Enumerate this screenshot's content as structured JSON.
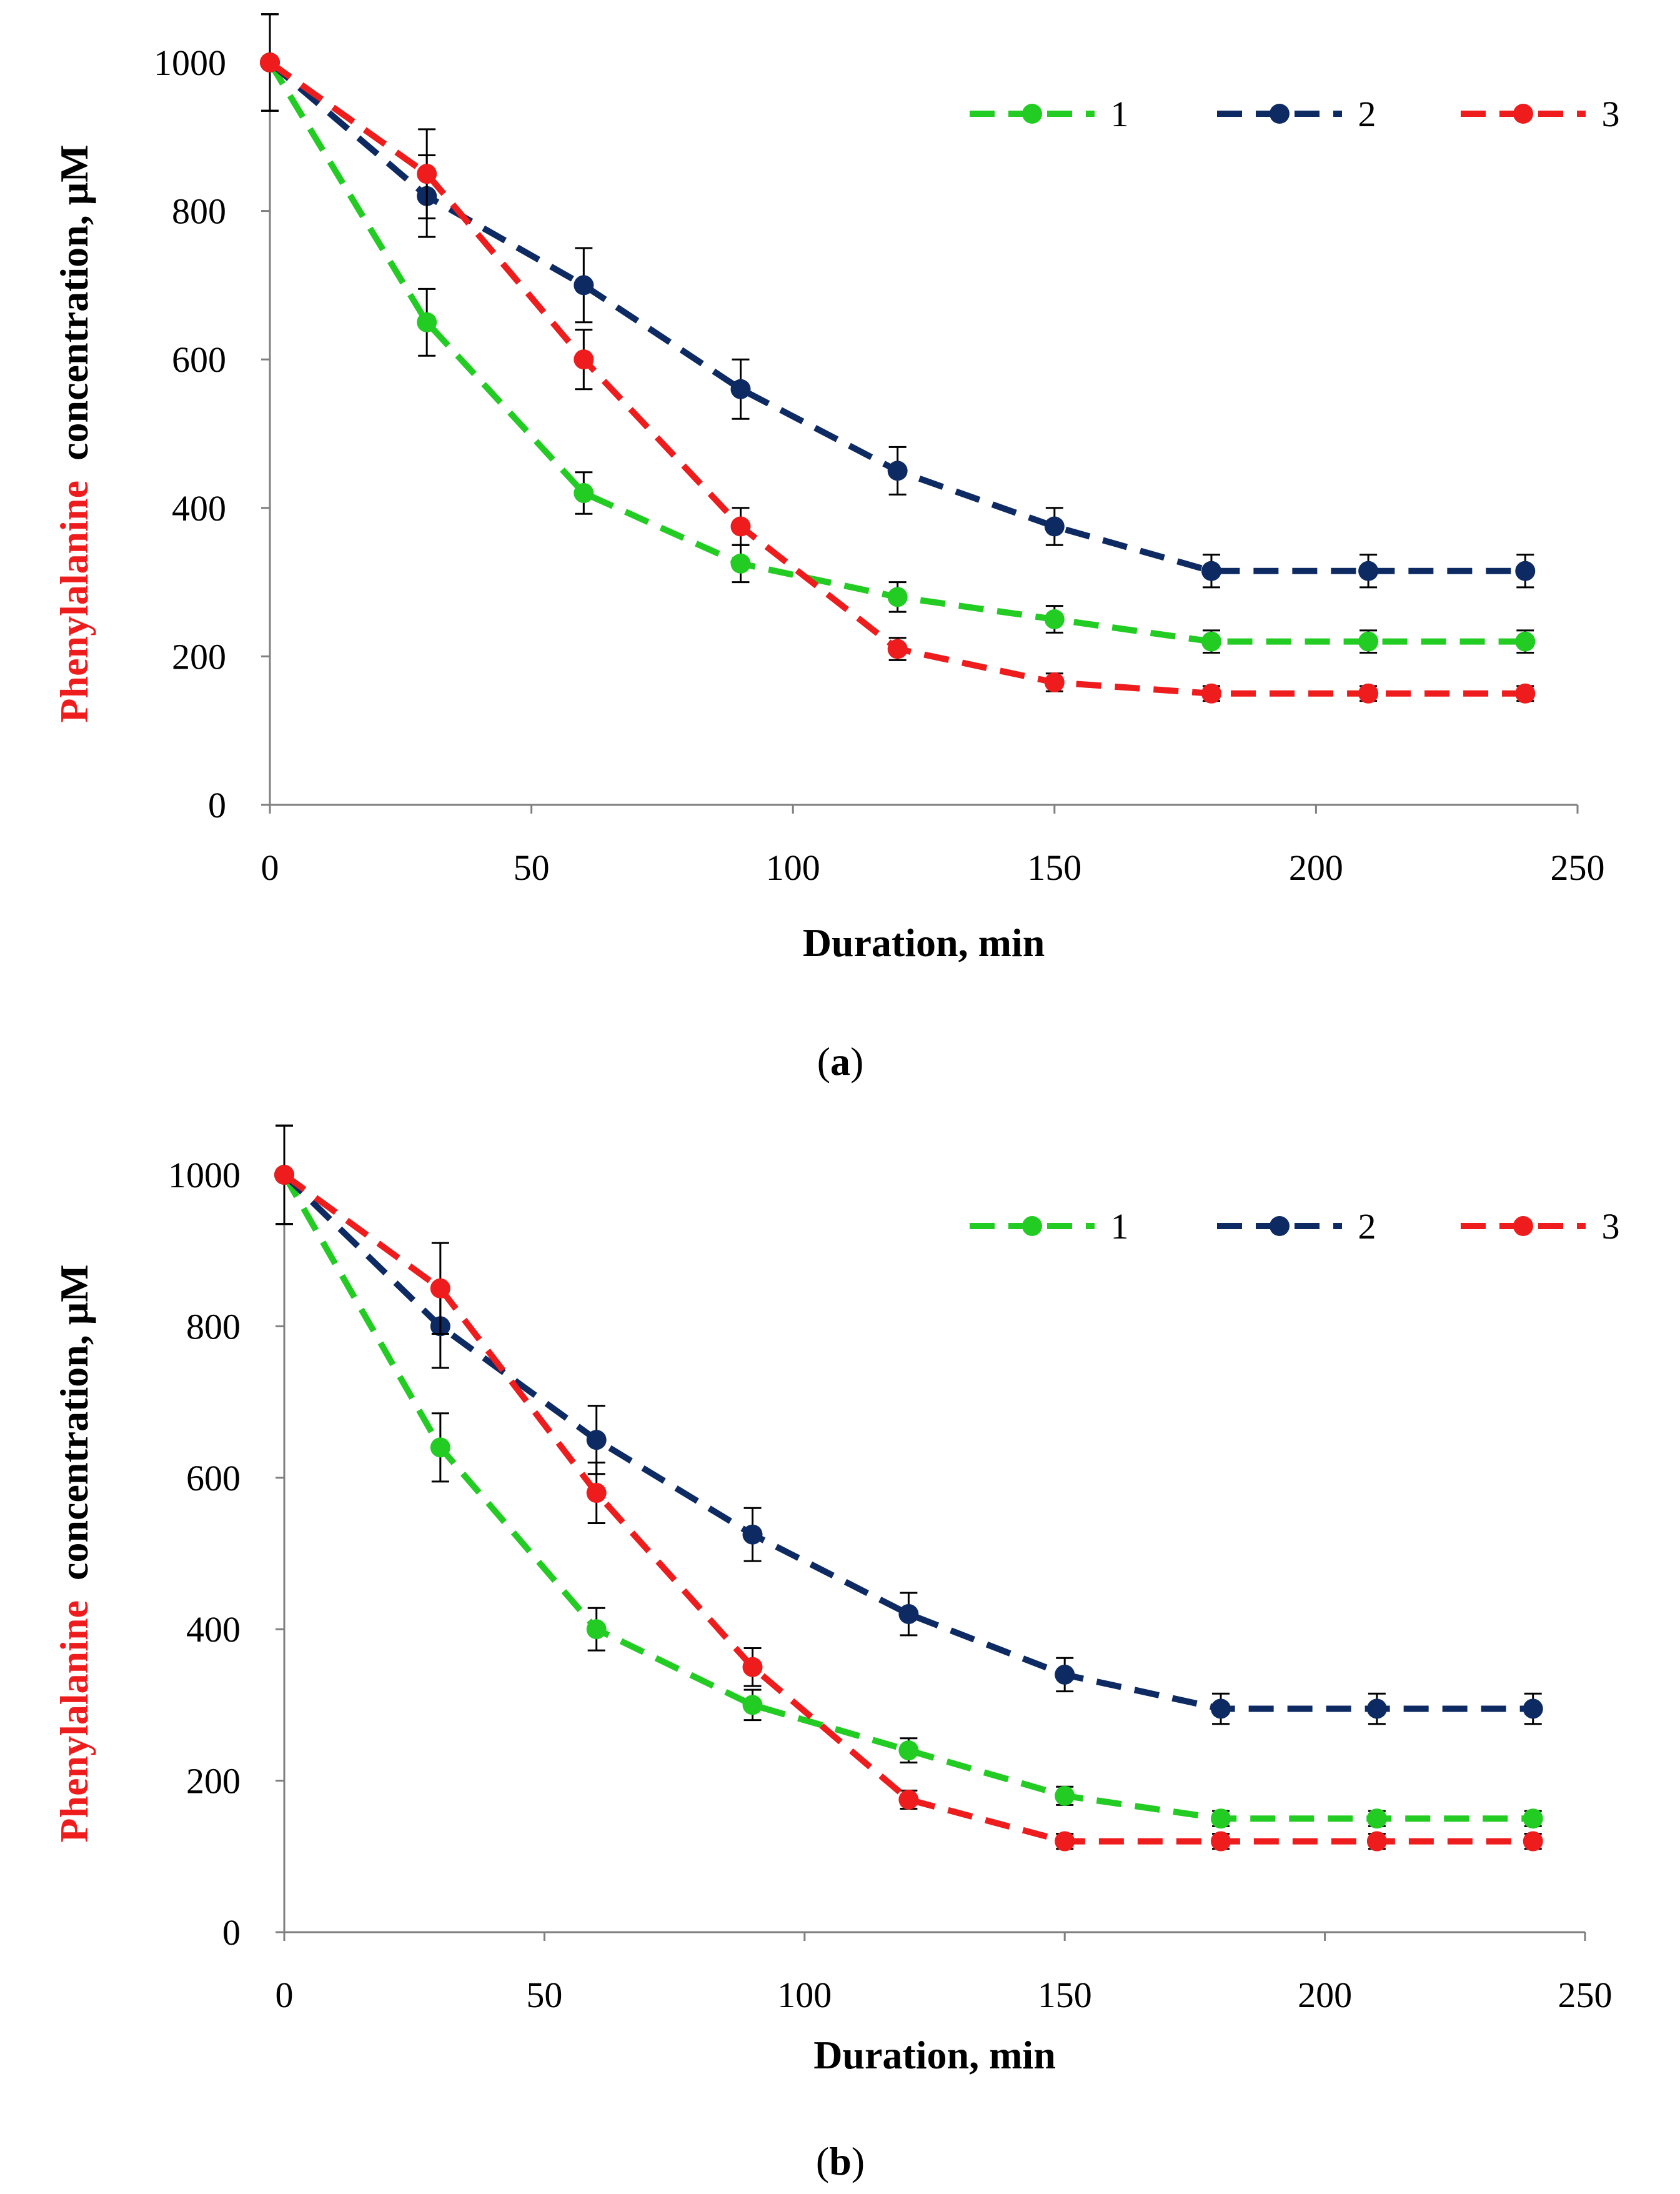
{
  "colors": {
    "1": "#22cc22",
    "2": "#0d2a63",
    "3": "#ee1c1c",
    "axis": "#7f7f7f"
  },
  "chart_data": [
    {
      "type": "line",
      "panel_label": "a",
      "xlabel": "Duration, min",
      "ylabel_highlight": "Phenylalanine",
      "ylabel_rest": "concentration, μM",
      "xlim": [
        0,
        250
      ],
      "ylim": [
        0,
        1000
      ],
      "xticks": [
        0,
        50,
        100,
        150,
        200,
        250
      ],
      "yticks": [
        0,
        200,
        400,
        600,
        800,
        1000
      ],
      "legend_position": "top-right",
      "series": [
        {
          "name": "1",
          "x": [
            0,
            30,
            60,
            90,
            120,
            150,
            180,
            210,
            240
          ],
          "y": [
            1000,
            650,
            420,
            325,
            280,
            250,
            220,
            220,
            220
          ],
          "err": [
            65,
            45,
            28,
            25,
            20,
            18,
            15,
            15,
            15
          ]
        },
        {
          "name": "2",
          "x": [
            0,
            30,
            60,
            90,
            120,
            150,
            180,
            210,
            240
          ],
          "y": [
            1000,
            820,
            700,
            560,
            450,
            375,
            315,
            315,
            315
          ],
          "err": [
            65,
            55,
            50,
            40,
            32,
            25,
            22,
            22,
            22
          ]
        },
        {
          "name": "3",
          "x": [
            0,
            30,
            60,
            90,
            120,
            150,
            180,
            210,
            240
          ],
          "y": [
            1000,
            850,
            600,
            375,
            210,
            165,
            150,
            150,
            150
          ],
          "err": [
            65,
            60,
            40,
            25,
            15,
            12,
            10,
            10,
            10
          ]
        }
      ]
    },
    {
      "type": "line",
      "panel_label": "b",
      "xlabel": "Duration, min",
      "ylabel_highlight": "Phenylalanine",
      "ylabel_rest": "concentration, μM",
      "xlim": [
        0,
        250
      ],
      "ylim": [
        0,
        1000
      ],
      "xticks": [
        0,
        50,
        100,
        150,
        200,
        250
      ],
      "yticks": [
        0,
        200,
        400,
        600,
        800,
        1000
      ],
      "legend_position": "top-right",
      "series": [
        {
          "name": "1",
          "x": [
            0,
            30,
            60,
            90,
            120,
            150,
            180,
            210,
            240
          ],
          "y": [
            1000,
            640,
            400,
            300,
            240,
            180,
            150,
            150,
            150
          ],
          "err": [
            65,
            45,
            28,
            20,
            16,
            12,
            10,
            10,
            10
          ]
        },
        {
          "name": "2",
          "x": [
            0,
            30,
            60,
            90,
            120,
            150,
            180,
            210,
            240
          ],
          "y": [
            1000,
            800,
            650,
            525,
            420,
            340,
            295,
            295,
            295
          ],
          "err": [
            65,
            55,
            45,
            35,
            28,
            22,
            20,
            20,
            20
          ]
        },
        {
          "name": "3",
          "x": [
            0,
            30,
            60,
            90,
            120,
            150,
            180,
            210,
            240
          ],
          "y": [
            1000,
            850,
            580,
            350,
            175,
            120,
            120,
            120,
            120
          ],
          "err": [
            65,
            60,
            40,
            25,
            12,
            10,
            10,
            10,
            10
          ]
        }
      ]
    }
  ]
}
